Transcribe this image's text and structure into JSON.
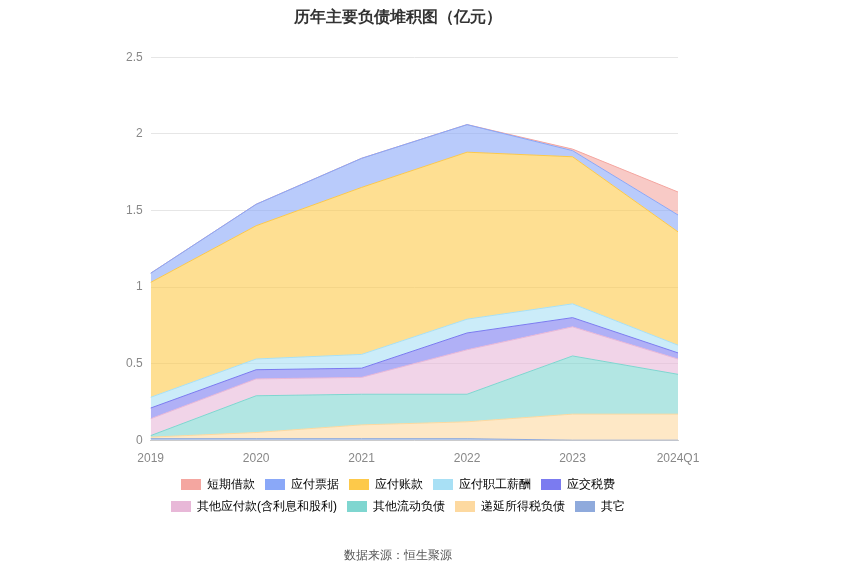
{
  "chart_data": {
    "type": "area",
    "title": "历年主要负债堆积图（亿元）",
    "source": "数据来源：恒生聚源",
    "categories": [
      "2019",
      "2020",
      "2021",
      "2022",
      "2023",
      "2024Q1"
    ],
    "stacked": true,
    "grid": true,
    "legend": "bottom",
    "ylim": [
      0,
      2.5
    ],
    "yticks": [
      0,
      0.5,
      1,
      1.5,
      2,
      2.5
    ],
    "series": [
      {
        "name": "短期借款",
        "color": "#f4a6a0",
        "values": [
          0,
          0,
          0,
          0,
          0.01,
          0.15
        ]
      },
      {
        "name": "应付票据",
        "color": "#8aa8f8",
        "values": [
          0.06,
          0.14,
          0.19,
          0.18,
          0.04,
          0.11
        ]
      },
      {
        "name": "应付账款",
        "color": "#fdc94a",
        "values": [
          0.75,
          0.87,
          1.09,
          1.09,
          0.96,
          0.74
        ]
      },
      {
        "name": "应付职工薪酬",
        "color": "#a8e0f5",
        "values": [
          0.07,
          0.07,
          0.09,
          0.09,
          0.09,
          0.05
        ]
      },
      {
        "name": "应交税费",
        "color": "#7b7bf0",
        "values": [
          0.07,
          0.06,
          0.06,
          0.11,
          0.06,
          0.04
        ]
      },
      {
        "name": "其他应付款(含利息和股利)",
        "color": "#e8b8d8",
        "values": [
          0.11,
          0.11,
          0.11,
          0.29,
          0.19,
          0.1
        ]
      },
      {
        "name": "其他流动负债",
        "color": "#7fd6d0",
        "values": [
          0.01,
          0.24,
          0.2,
          0.18,
          0.38,
          0.26
        ]
      },
      {
        "name": "递延所得税负债",
        "color": "#fdd9a0",
        "values": [
          0.01,
          0.04,
          0.09,
          0.11,
          0.17,
          0.17
        ]
      },
      {
        "name": "其它",
        "color": "#8faadc",
        "values": [
          0.01,
          0.01,
          0.01,
          0.01,
          0,
          0
        ]
      }
    ]
  }
}
